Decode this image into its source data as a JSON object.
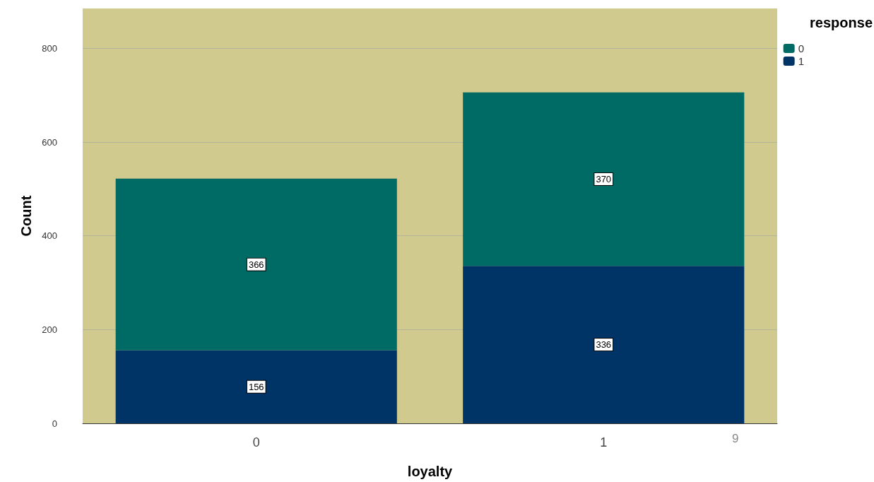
{
  "chart_data": {
    "type": "bar",
    "stacked": true,
    "xlabel": "loyalty",
    "ylabel": "Count",
    "legend_title": "response",
    "categories": [
      "0",
      "1"
    ],
    "series": [
      {
        "name": "1",
        "color": "#003366",
        "values": [
          156,
          336
        ]
      },
      {
        "name": "0",
        "color": "#006b64",
        "values": [
          366,
          370
        ]
      }
    ],
    "ylim": [
      0,
      885
    ],
    "yticks": [
      0,
      200,
      400,
      600,
      800
    ],
    "grid": "y",
    "legend": "top right",
    "data_labels": true,
    "annotations": [
      "9"
    ]
  }
}
